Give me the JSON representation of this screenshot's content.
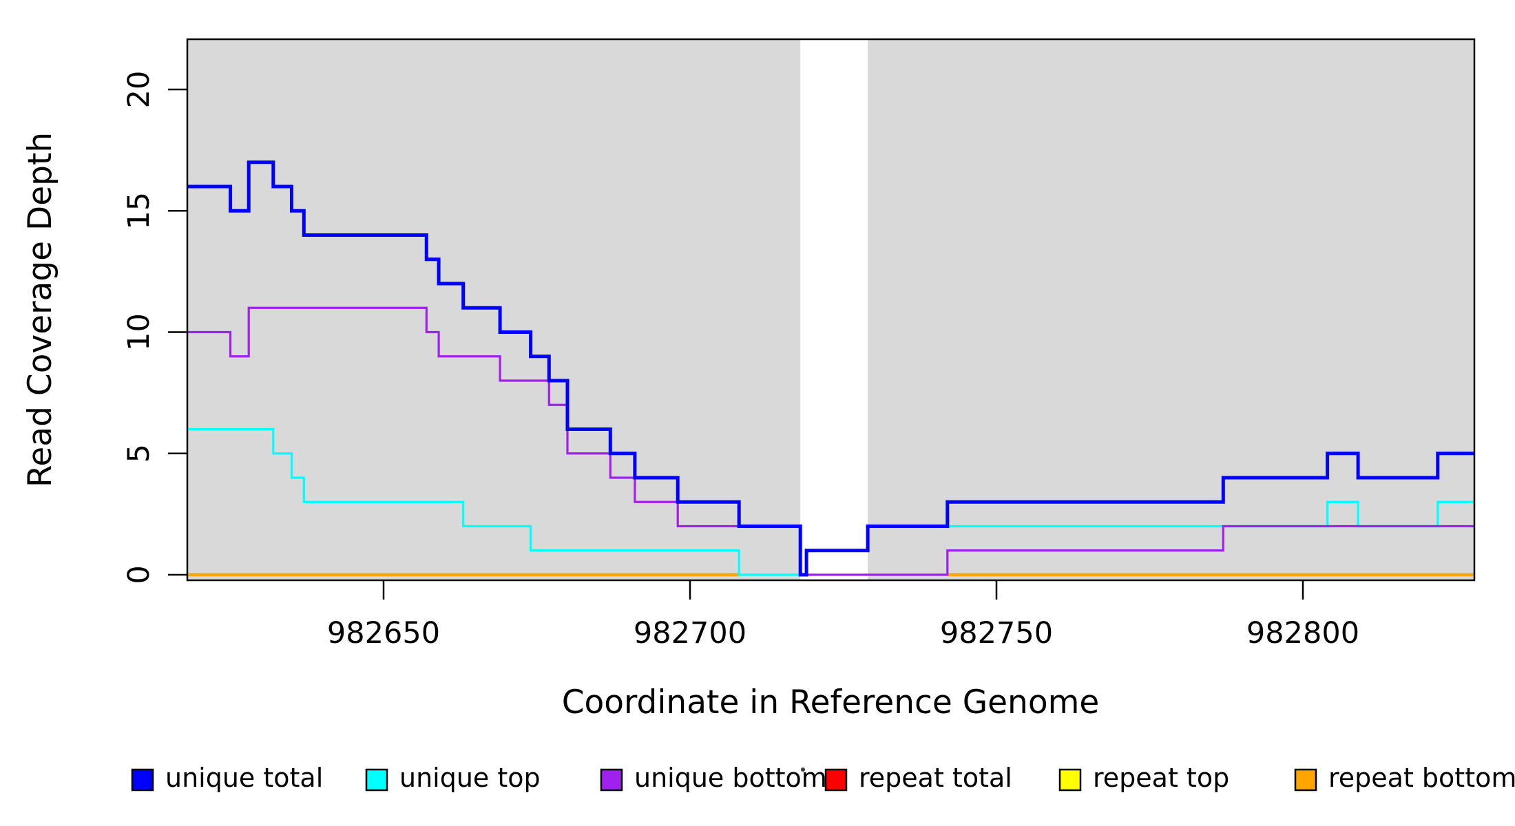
{
  "chart_data": {
    "type": "line",
    "step_style": "s",
    "title": "",
    "xlabel": "Coordinate in Reference Genome",
    "ylabel": "Read Coverage Depth",
    "xlim": [
      982618,
      982828
    ],
    "ylim": [
      0,
      22
    ],
    "x_ticks": [
      982650,
      982700,
      982750,
      982800
    ],
    "y_ticks": [
      0,
      5,
      10,
      15,
      20
    ],
    "grid": false,
    "panel": {
      "background_color": "#D9D9D9",
      "shaded_regions": [
        [
          982618,
          982718
        ],
        [
          982729,
          982828
        ]
      ],
      "white_gap": [
        982718,
        982729
      ]
    },
    "legend": {
      "position": "bottom",
      "items": [
        {
          "label": "unique total",
          "color": "#0000FF"
        },
        {
          "label": "unique top",
          "color": "#00FFFF"
        },
        {
          "label": "unique bottom",
          "color": "#A020F0"
        },
        {
          "label": "repeat total",
          "color": "#FF0000"
        },
        {
          "label": "repeat top",
          "color": "#FFFF00"
        },
        {
          "label": "repeat bottom",
          "color": "#FFA500"
        }
      ]
    },
    "series": [
      {
        "name": "repeat total",
        "color": "#FF0000",
        "width": 3,
        "runs": [
          {
            "points": [
              [
                982618,
                0
              ]
            ],
            "end": 982708
          },
          {
            "points": [
              [
                982742,
                0
              ]
            ],
            "end": 982828
          }
        ]
      },
      {
        "name": "repeat top",
        "color": "#FFFF00",
        "width": 3,
        "runs": [
          {
            "points": [
              [
                982618,
                0
              ]
            ],
            "end": 982708
          },
          {
            "points": [
              [
                982742,
                0
              ]
            ],
            "end": 982828
          }
        ]
      },
      {
        "name": "repeat bottom",
        "color": "#FFA500",
        "width": 4.5,
        "runs": [
          {
            "points": [
              [
                982618,
                0
              ]
            ],
            "end": 982708
          },
          {
            "points": [
              [
                982742,
                0
              ]
            ],
            "end": 982828
          }
        ]
      },
      {
        "name": "unique top",
        "color": "#00FFFF",
        "width": 3.2,
        "runs": [
          {
            "points": [
              [
                982618,
                6
              ],
              [
                982632,
                5
              ],
              [
                982635,
                4
              ],
              [
                982637,
                3
              ],
              [
                982663,
                2
              ],
              [
                982674,
                1
              ],
              [
                982708,
                0
              ],
              [
                982719,
                1
              ],
              [
                982729,
                2
              ],
              [
                982804,
                3
              ],
              [
                982809,
                2
              ],
              [
                982822,
                3
              ]
            ],
            "end": 982828
          }
        ]
      },
      {
        "name": "unique bottom",
        "color": "#A020F0",
        "width": 3.2,
        "runs": [
          {
            "points": [
              [
                982618,
                10
              ],
              [
                982625,
                9
              ],
              [
                982628,
                11
              ],
              [
                982657,
                10
              ],
              [
                982659,
                9
              ],
              [
                982669,
                8
              ],
              [
                982677,
                7
              ],
              [
                982680,
                5
              ],
              [
                982687,
                4
              ],
              [
                982691,
                3
              ],
              [
                982698,
                2
              ],
              [
                982718,
                0
              ],
              [
                982742,
                1
              ],
              [
                982787,
                2
              ]
            ],
            "end": 982828
          }
        ]
      },
      {
        "name": "unique total",
        "color": "#0000FF",
        "width": 5,
        "runs": [
          {
            "points": [
              [
                982618,
                16
              ],
              [
                982625,
                15
              ],
              [
                982628,
                17
              ],
              [
                982632,
                16
              ],
              [
                982635,
                15
              ],
              [
                982637,
                14
              ],
              [
                982657,
                13
              ],
              [
                982659,
                12
              ],
              [
                982663,
                11
              ],
              [
                982669,
                10
              ],
              [
                982674,
                9
              ],
              [
                982677,
                8
              ],
              [
                982680,
                6
              ],
              [
                982687,
                5
              ],
              [
                982691,
                4
              ],
              [
                982698,
                3
              ],
              [
                982708,
                2
              ],
              [
                982718,
                0
              ],
              [
                982719,
                1
              ],
              [
                982729,
                2
              ],
              [
                982742,
                3
              ],
              [
                982787,
                4
              ],
              [
                982804,
                5
              ],
              [
                982809,
                4
              ],
              [
                982822,
                5
              ]
            ],
            "end": 982828
          }
        ]
      }
    ]
  }
}
